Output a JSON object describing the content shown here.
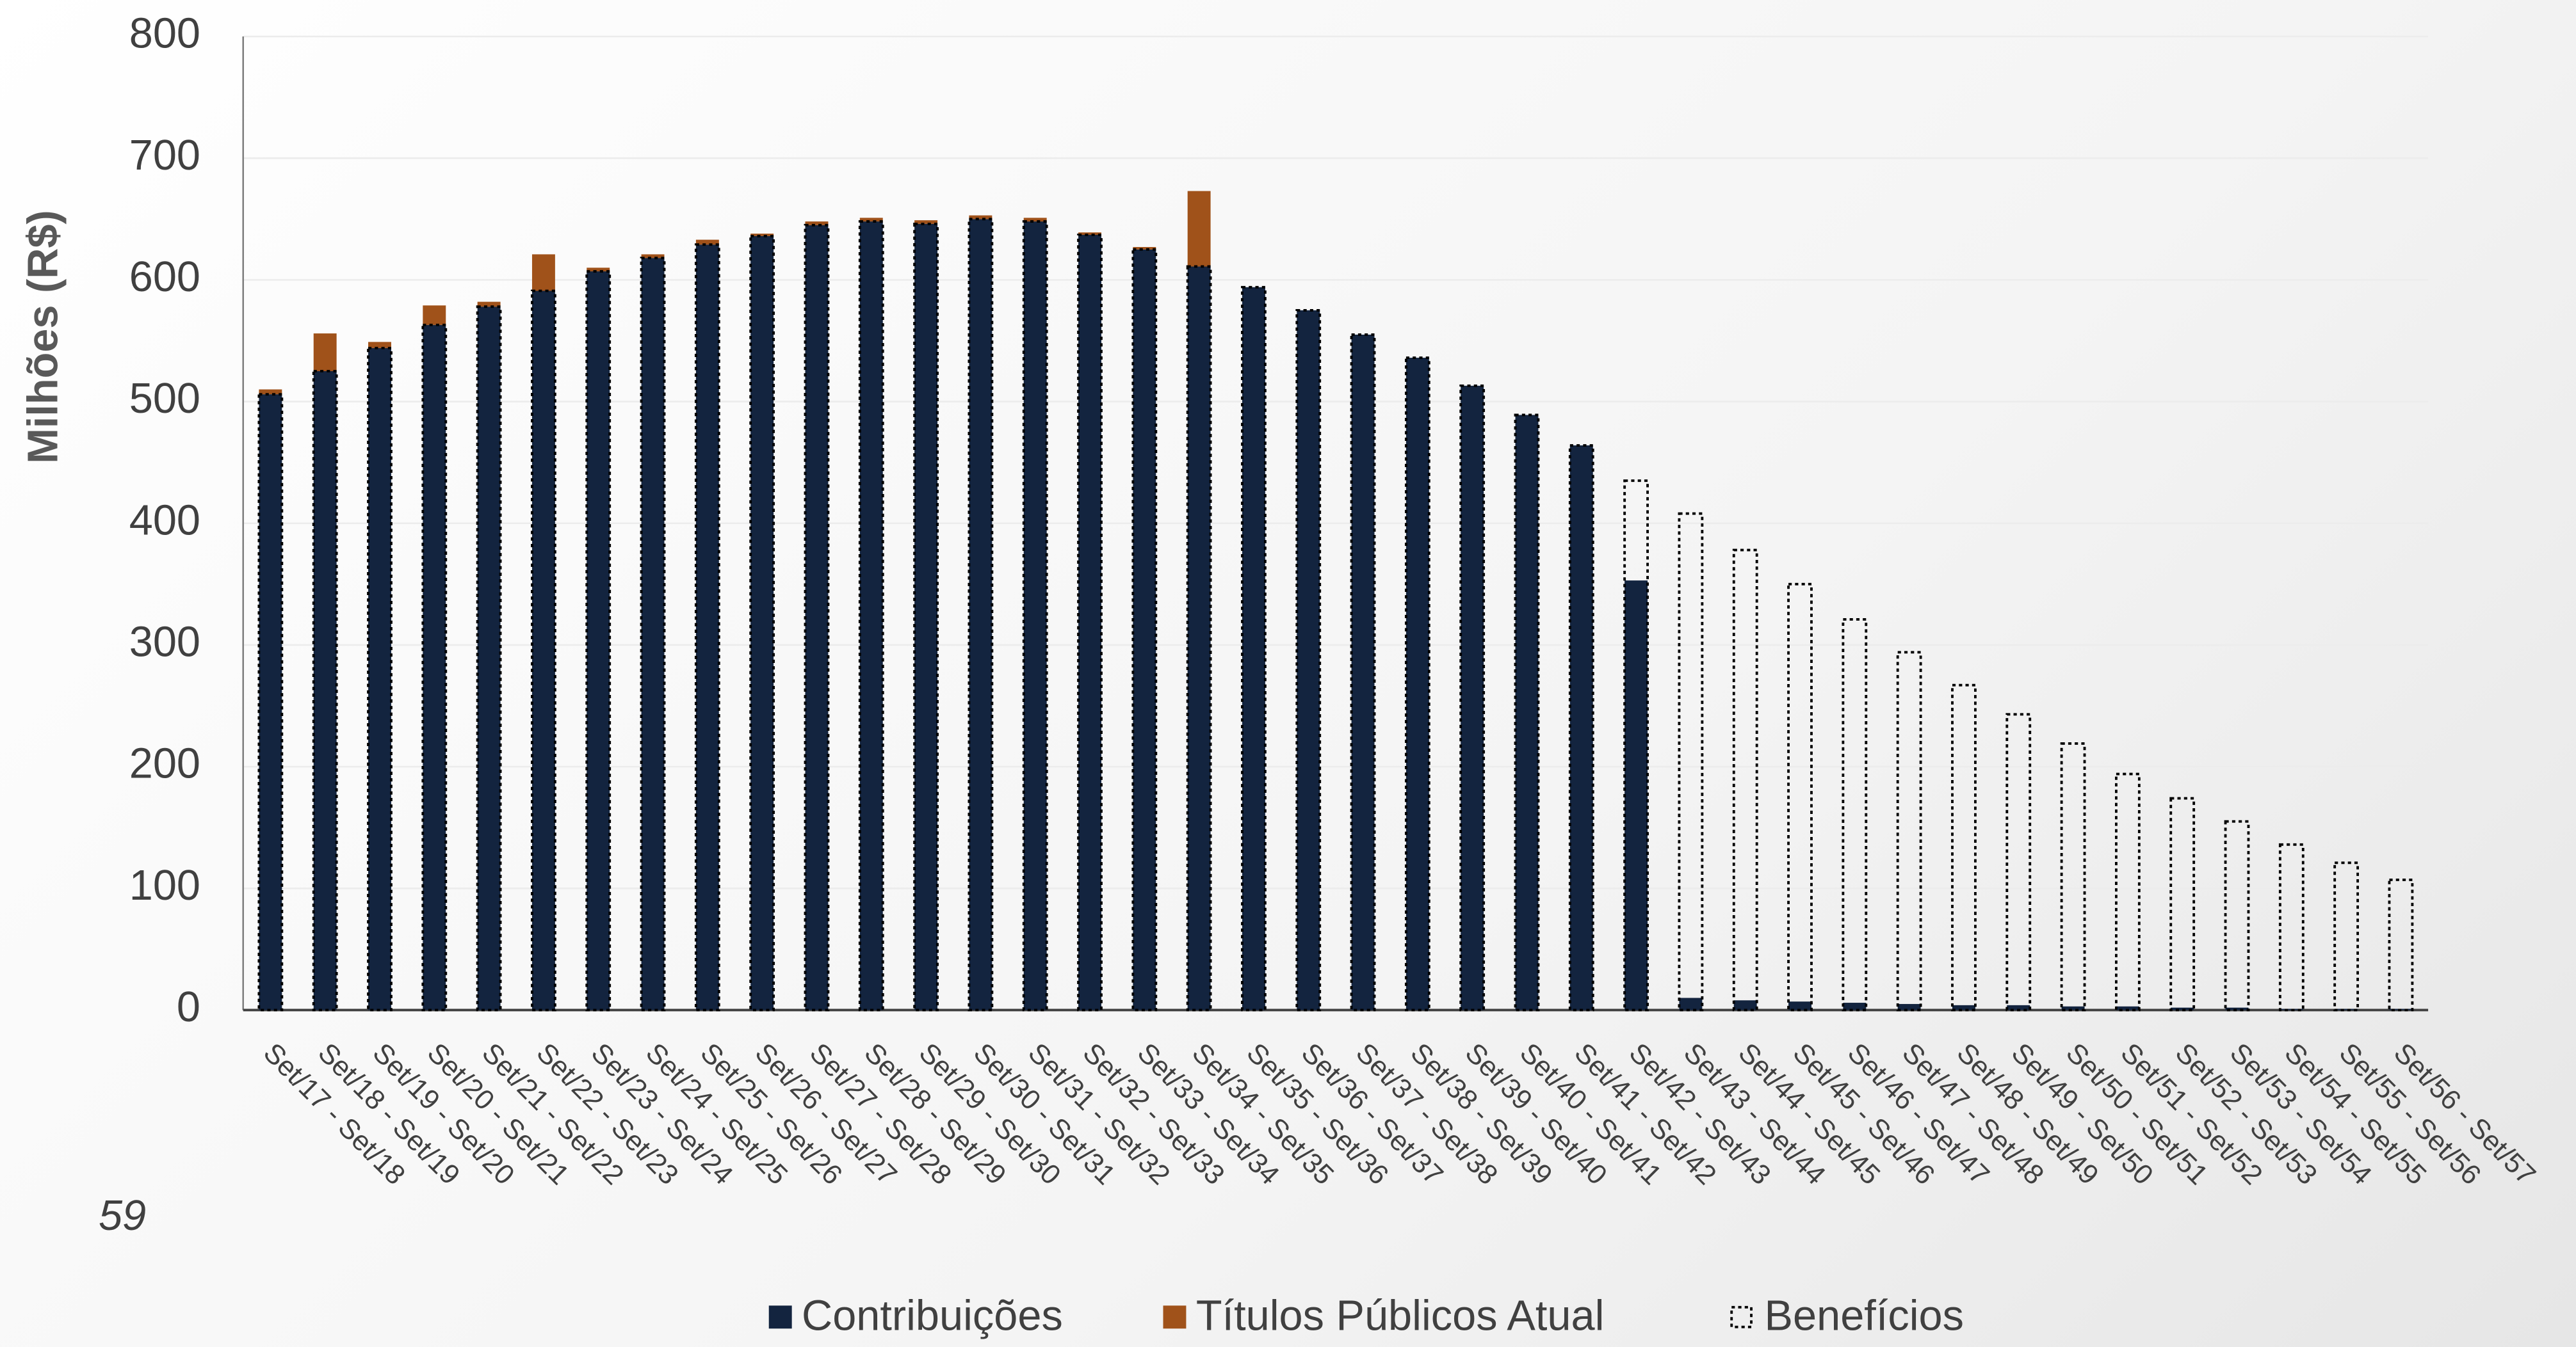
{
  "chart_data": {
    "type": "bar",
    "y_label": "Milhões (R$)",
    "page_number": "59",
    "categories": [
      "Set/17 - Set/18",
      "Set/18 - Set/19",
      "Set/19 - Set/20",
      "Set/20 - Set/21",
      "Set/21 - Set/22",
      "Set/22 - Set/23",
      "Set/23 - Set/24",
      "Set/24 - Set/25",
      "Set/25 - Set/26",
      "Set/26 - Set/27",
      "Set/27 - Set/28",
      "Set/28 - Set/29",
      "Set/29 - Set/30",
      "Set/30 - Set/31",
      "Set/31 - Set/32",
      "Set/32 - Set/33",
      "Set/33 - Set/34",
      "Set/34 - Set/35",
      "Set/35 - Set/36",
      "Set/36 - Set/37",
      "Set/37 - Set/38",
      "Set/38 - Set/39",
      "Set/39 - Set/40",
      "Set/40 - Set/41",
      "Set/41 - Set/42",
      "Set/42 - Set/43",
      "Set/43 - Set/44",
      "Set/44 - Set/45",
      "Set/45 - Set/46",
      "Set/46 - Set/47",
      "Set/47 - Set/48",
      "Set/48 - Set/49",
      "Set/49 - Set/50",
      "Set/50 - Set/51",
      "Set/51 - Set/52",
      "Set/52 - Set/53",
      "Set/53 - Set/54",
      "Set/54 - Set/55",
      "Set/55 - Set/56",
      "Set/56 - Set/57"
    ],
    "series": [
      {
        "name": "Contribuições",
        "color": "#13243f",
        "stacked": true,
        "values": [
          506,
          525,
          544,
          563,
          578,
          591,
          607,
          618,
          629,
          636,
          645,
          648,
          646,
          650,
          648,
          637,
          625,
          611,
          594,
          575,
          555,
          536,
          513,
          489,
          464,
          353,
          10,
          8,
          7,
          6,
          5,
          4,
          4,
          3,
          3,
          2,
          2,
          1,
          1,
          1
        ]
      },
      {
        "name": "Títulos Públicos Atual",
        "color": "#a0521a",
        "stacked": true,
        "values": [
          4,
          31,
          5,
          16,
          4,
          30,
          3,
          3,
          4,
          2,
          3,
          3,
          3,
          3,
          3,
          2,
          2,
          62,
          0,
          0,
          0,
          0,
          0,
          0,
          0,
          0,
          0,
          0,
          0,
          0,
          0,
          0,
          0,
          0,
          0,
          0,
          0,
          0,
          0,
          0
        ]
      },
      {
        "name": "Benefícios",
        "color": "#000000",
        "stacked": false,
        "outline": true,
        "values": [
          506,
          525,
          544,
          563,
          578,
          591,
          607,
          618,
          629,
          636,
          645,
          648,
          646,
          650,
          648,
          637,
          625,
          611,
          594,
          575,
          555,
          536,
          513,
          489,
          464,
          435,
          408,
          378,
          350,
          321,
          294,
          267,
          243,
          219,
          194,
          174,
          155,
          136,
          121,
          107
        ]
      }
    ],
    "ylim": [
      0,
      800
    ],
    "yticks": [
      0,
      100,
      200,
      300,
      400,
      500,
      600,
      700,
      800
    ],
    "grid": true
  }
}
